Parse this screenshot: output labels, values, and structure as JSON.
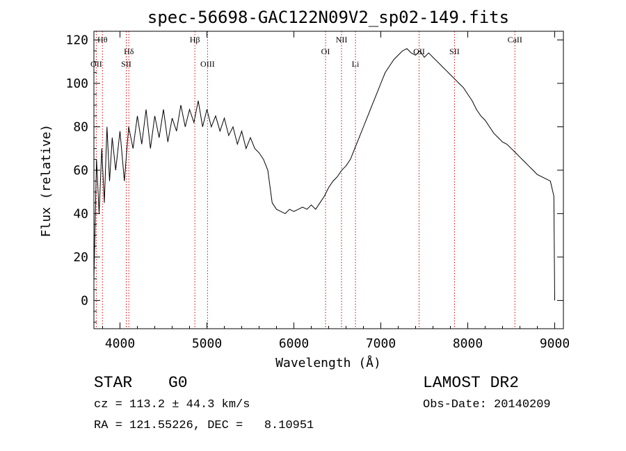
{
  "chart_data": {
    "type": "line",
    "title": "spec-56698-GAC122N09V2_sp02-149.fits",
    "xlabel": "Wavelength (Å)",
    "ylabel": "Flux (relative)",
    "xlim": [
      3700,
      9100
    ],
    "ylim": [
      -13,
      124
    ],
    "x_ticks": [
      4000,
      5000,
      6000,
      7000,
      8000,
      9000
    ],
    "y_ticks": [
      0,
      20,
      40,
      60,
      80,
      100,
      120
    ],
    "grid": false,
    "line_color": "#000000",
    "spectral_line_color": "#cc0000",
    "spectral_lines": [
      {
        "name": "Hθ",
        "wavelength": 3798
      },
      {
        "name": "OII",
        "wavelength": 3727
      },
      {
        "name": "Hδ",
        "wavelength": 4102
      },
      {
        "name": "SII",
        "wavelength": 4072
      },
      {
        "name": "Hβ",
        "wavelength": 4861
      },
      {
        "name": "OIII",
        "wavelength": 5007
      },
      {
        "name": "OI",
        "wavelength": 6364
      },
      {
        "name": "NII",
        "wavelength": 6548
      },
      {
        "name": "Li",
        "wavelength": 6708
      },
      {
        "name": "OII",
        "wavelength": 7440
      },
      {
        "name": "SII",
        "wavelength": 7847
      },
      {
        "name": "CaII",
        "wavelength": 8542
      }
    ],
    "series": [
      {
        "x": [
          3700,
          3730,
          3760,
          3790,
          3820,
          3850,
          3880,
          3910,
          3950,
          4000,
          4050,
          4100,
          4150,
          4200,
          4250,
          4300,
          4350,
          4400,
          4450,
          4500,
          4550,
          4600,
          4650,
          4700,
          4750,
          4800,
          4850,
          4900,
          4950,
          5000,
          5050,
          5100,
          5150,
          5200,
          5250,
          5300,
          5350,
          5400,
          5450,
          5500,
          5550,
          5600,
          5650,
          5700,
          5750,
          5800,
          5850,
          5900,
          5950,
          6000,
          6050,
          6100,
          6150,
          6200,
          6250,
          6300,
          6350,
          6400,
          6450,
          6500,
          6550,
          6600,
          6650,
          6700,
          6750,
          6800,
          6850,
          6900,
          6950,
          7000,
          7050,
          7100,
          7150,
          7200,
          7250,
          7300,
          7350,
          7400,
          7450,
          7500,
          7550,
          7600,
          7650,
          7700,
          7750,
          7800,
          7850,
          7900,
          7950,
          8000,
          8050,
          8100,
          8150,
          8200,
          8250,
          8300,
          8350,
          8400,
          8450,
          8500,
          8550,
          8600,
          8650,
          8700,
          8750,
          8800,
          8850,
          8900,
          8950,
          8990,
          9000
        ],
        "y": [
          10,
          65,
          40,
          70,
          45,
          80,
          55,
          75,
          60,
          78,
          55,
          80,
          70,
          85,
          72,
          88,
          70,
          85,
          75,
          88,
          73,
          84,
          78,
          90,
          80,
          88,
          82,
          92,
          80,
          88,
          80,
          85,
          78,
          84,
          76,
          80,
          72,
          78,
          70,
          75,
          70,
          68,
          65,
          60,
          45,
          42,
          41,
          40,
          42,
          41,
          42,
          43,
          42,
          44,
          42,
          45,
          48,
          52,
          55,
          57,
          60,
          62,
          65,
          70,
          75,
          80,
          85,
          90,
          95,
          100,
          105,
          108,
          111,
          113,
          115,
          116,
          114,
          113,
          115,
          112,
          114,
          112,
          110,
          108,
          106,
          104,
          102,
          100,
          98,
          95,
          92,
          88,
          85,
          83,
          80,
          77,
          75,
          73,
          72,
          70,
          68,
          66,
          64,
          62,
          60,
          58,
          57,
          56,
          55,
          48,
          0
        ]
      }
    ]
  },
  "info": {
    "object_class": "STAR",
    "subclass": "G0",
    "survey": "LAMOST DR2",
    "cz_line": "cz = 113.2 ± 44.3 km/s",
    "obs_date_line": "Obs-Date: 20140209",
    "radec_line": "RA = 121.55226, DEC =   8.10951"
  }
}
